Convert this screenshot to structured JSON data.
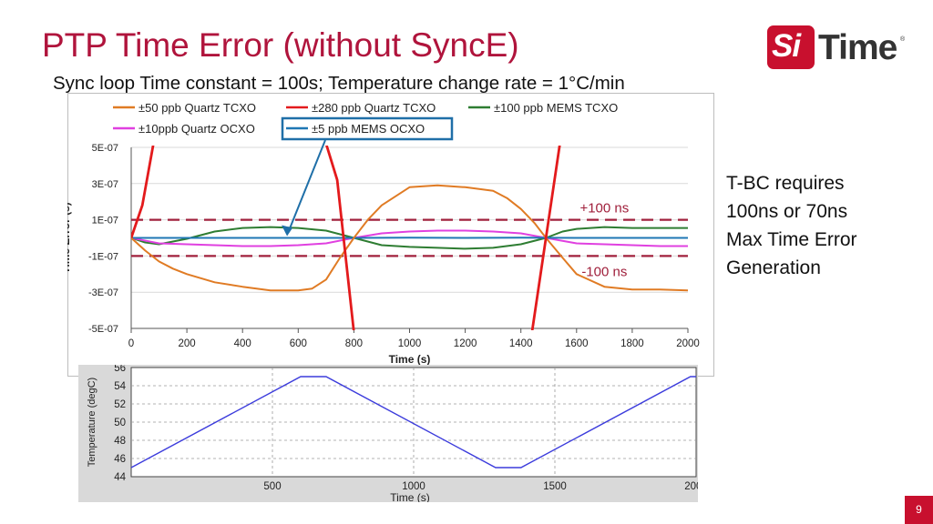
{
  "slide": {
    "title": "PTP Time Error (without SyncE)",
    "subtitle": "Sync loop Time constant = 100s; Temperature change rate = 1°C/min",
    "side_note": [
      "T-BC requires",
      "100ns or 70ns",
      "Max Time Error",
      "Generation"
    ],
    "page_number": "9"
  },
  "logo": {
    "part1": "Si",
    "part2": "Time",
    "mark": "®",
    "brand_color": "#c8102e"
  },
  "chart_data": [
    {
      "type": "line",
      "xlabel": "Time (s)",
      "ylabel": "Time Error (s)",
      "xlim": [
        0,
        2000
      ],
      "ylim": [
        -5e-07,
        5e-07
      ],
      "xticks": [
        0,
        200,
        400,
        600,
        800,
        1000,
        1200,
        1400,
        1600,
        1800,
        2000
      ],
      "xtick_labels": [
        "0",
        "200",
        "400",
        "600",
        "800",
        "1000",
        "1200",
        "1400",
        "1600",
        "1800",
        "2000"
      ],
      "yticks": [
        5e-07,
        3e-07,
        1e-07,
        -1e-07,
        -3e-07,
        -5e-07
      ],
      "ytick_labels": [
        "5E-07",
        "3E-07",
        "1E-07",
        "-1E-07",
        "-3E-07",
        "-5E-07"
      ],
      "grid": "horizontal",
      "legend_position": "top",
      "legend_rows": [
        [
          0,
          1,
          2
        ],
        [
          3,
          4
        ]
      ],
      "thresholds": [
        {
          "value": 1e-07,
          "label": "+100 ns",
          "color": "#a0203c"
        },
        {
          "value": -1e-07,
          "label": "-100 ns",
          "color": "#a0203c"
        }
      ],
      "annotation": {
        "text": "±5 ppb MEMS OCXO",
        "points_to": [
          560,
          0
        ],
        "box_color": "#1f6fa8"
      },
      "series": [
        {
          "name": "±50 ppb Quartz TCXO",
          "color": "#e07b24",
          "x": [
            0,
            50,
            100,
            150,
            200,
            300,
            400,
            500,
            600,
            650,
            700,
            750,
            800,
            850,
            900,
            1000,
            1100,
            1200,
            1300,
            1350,
            1400,
            1450,
            1490,
            1550,
            1600,
            1700,
            1800,
            1900,
            2000
          ],
          "y": [
            0,
            -7e-08,
            -1.3e-07,
            -1.7e-07,
            -2e-07,
            -2.45e-07,
            -2.7e-07,
            -2.9e-07,
            -2.9e-07,
            -2.8e-07,
            -2.3e-07,
            -1.1e-07,
            0,
            1e-07,
            1.8e-07,
            2.8e-07,
            2.9e-07,
            2.8e-07,
            2.6e-07,
            2.2e-07,
            1.6e-07,
            8e-08,
            0,
            -1.1e-07,
            -2e-07,
            -2.7e-07,
            -2.85e-07,
            -2.85e-07,
            -2.9e-07
          ]
        },
        {
          "name": "±280 ppb Quartz TCXO",
          "color": "#e31a1c",
          "x": [
            0,
            40,
            80,
            700,
            740,
            800,
            1440,
            1490,
            1540
          ],
          "y": [
            0,
            1.8e-07,
            5.2e-07,
            5.2e-07,
            3.2e-07,
            -5.2e-07,
            -5.2e-07,
            0,
            5.2e-07
          ]
        },
        {
          "name": "±100 ppb MEMS TCXO",
          "color": "#2e7d32",
          "x": [
            0,
            50,
            100,
            200,
            300,
            400,
            500,
            600,
            700,
            800,
            900,
            1000,
            1100,
            1200,
            1300,
            1400,
            1490,
            1550,
            1600,
            1700,
            1800,
            1900,
            2000
          ],
          "y": [
            0,
            -2.5e-08,
            -3.5e-08,
            -5e-09,
            3.5e-08,
            5.5e-08,
            6e-08,
            5.5e-08,
            4e-08,
            0,
            -4e-08,
            -5e-08,
            -5.5e-08,
            -6e-08,
            -5.5e-08,
            -3.5e-08,
            0,
            3.5e-08,
            5e-08,
            6e-08,
            5.5e-08,
            5.5e-08,
            5.5e-08
          ]
        },
        {
          "name": "±10ppb Quartz OCXO",
          "color": "#e040e0",
          "x": [
            0,
            100,
            200,
            300,
            400,
            500,
            600,
            700,
            800,
            900,
            1000,
            1100,
            1200,
            1300,
            1400,
            1490,
            1600,
            1700,
            1800,
            1900,
            2000
          ],
          "y": [
            0,
            -3e-08,
            -3.5e-08,
            -4e-08,
            -4.5e-08,
            -4.5e-08,
            -4e-08,
            -3e-08,
            0,
            2.5e-08,
            3.5e-08,
            4e-08,
            4e-08,
            3.5e-08,
            2.5e-08,
            0,
            -3e-08,
            -3.5e-08,
            -4e-08,
            -4.5e-08,
            -4.5e-08
          ]
        },
        {
          "name": "±5 ppb MEMS OCXO",
          "color": "#1f77b4",
          "x": [
            0,
            200,
            400,
            600,
            800,
            1000,
            1200,
            1400,
            1600,
            1800,
            2000
          ],
          "y": [
            0,
            0,
            0,
            0,
            0,
            1e-09,
            0,
            1e-09,
            0,
            0,
            0
          ]
        }
      ]
    },
    {
      "type": "line",
      "xlabel": "Time (s)",
      "ylabel": "Temperature (degC)",
      "xlim": [
        0,
        2000
      ],
      "ylim": [
        44,
        56
      ],
      "xticks": [
        500,
        1000,
        1500,
        2000
      ],
      "xtick_labels": [
        "500",
        "1000",
        "1500",
        "2000"
      ],
      "yticks": [
        44,
        46,
        48,
        50,
        52,
        54,
        56
      ],
      "ytick_labels": [
        "44",
        "46",
        "48",
        "50",
        "52",
        "54",
        "56"
      ],
      "grid": "dashed",
      "series": [
        {
          "color": "#3b3bdc",
          "x": [
            0,
            600,
            690,
            1290,
            1380,
            1980,
            2000
          ],
          "y": [
            45,
            55,
            55,
            45,
            45,
            55,
            55
          ]
        }
      ]
    }
  ]
}
